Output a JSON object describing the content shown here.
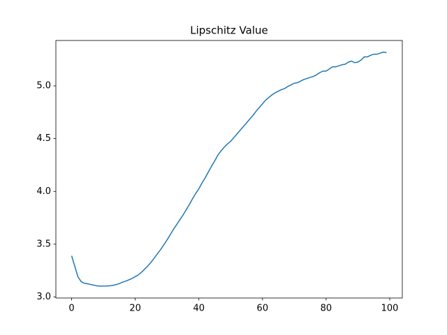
{
  "chart_data": {
    "type": "line",
    "title": "Lipschitz Value",
    "x": [
      0,
      1,
      2,
      3,
      4,
      5,
      6,
      7,
      8,
      9,
      10,
      11,
      12,
      13,
      14,
      15,
      16,
      17,
      18,
      19,
      20,
      21,
      22,
      23,
      24,
      25,
      26,
      27,
      28,
      29,
      30,
      31,
      32,
      33,
      34,
      35,
      36,
      37,
      38,
      39,
      40,
      41,
      42,
      43,
      44,
      45,
      46,
      47,
      48,
      49,
      50,
      51,
      52,
      53,
      54,
      55,
      56,
      57,
      58,
      59,
      60,
      61,
      62,
      63,
      64,
      65,
      66,
      67,
      68,
      69,
      70,
      71,
      72,
      73,
      74,
      75,
      76,
      77,
      78,
      79,
      80,
      81,
      82,
      83,
      84,
      85,
      86,
      87,
      88,
      89,
      90,
      91,
      92,
      93,
      94,
      95,
      96,
      97,
      98,
      99
    ],
    "series": [
      {
        "color": "#1f77b4",
        "values": [
          3.39,
          3.29,
          3.19,
          3.145,
          3.13,
          3.125,
          3.118,
          3.112,
          3.105,
          3.103,
          3.103,
          3.104,
          3.106,
          3.11,
          3.117,
          3.127,
          3.14,
          3.15,
          3.162,
          3.175,
          3.192,
          3.21,
          3.235,
          3.265,
          3.295,
          3.33,
          3.37,
          3.41,
          3.45,
          3.495,
          3.54,
          3.59,
          3.64,
          3.685,
          3.73,
          3.775,
          3.825,
          3.875,
          3.93,
          3.98,
          4.025,
          4.08,
          4.13,
          4.185,
          4.24,
          4.29,
          4.345,
          4.385,
          4.42,
          4.45,
          4.475,
          4.51,
          4.545,
          4.58,
          4.615,
          4.65,
          4.685,
          4.72,
          4.76,
          4.795,
          4.83,
          4.865,
          4.89,
          4.915,
          4.935,
          4.95,
          4.965,
          4.975,
          4.995,
          5.01,
          5.025,
          5.03,
          5.045,
          5.06,
          5.07,
          5.08,
          5.09,
          5.105,
          5.125,
          5.14,
          5.14,
          5.16,
          5.18,
          5.18,
          5.19,
          5.2,
          5.205,
          5.225,
          5.235,
          5.22,
          5.225,
          5.245,
          5.275,
          5.275,
          5.29,
          5.3,
          5.3,
          5.31,
          5.32,
          5.315
        ]
      }
    ],
    "xlim": [
      -4.95,
      103.95
    ],
    "xticks": [
      0,
      20,
      40,
      60,
      80,
      100
    ],
    "ylim": [
      2.99,
      5.43
    ],
    "yticks": [
      {
        "value": 3,
        "label": "3.0"
      },
      3.5,
      {
        "value": 4,
        "label": "4.0"
      },
      4.5,
      {
        "value": 5,
        "label": "5.0"
      }
    ]
  }
}
